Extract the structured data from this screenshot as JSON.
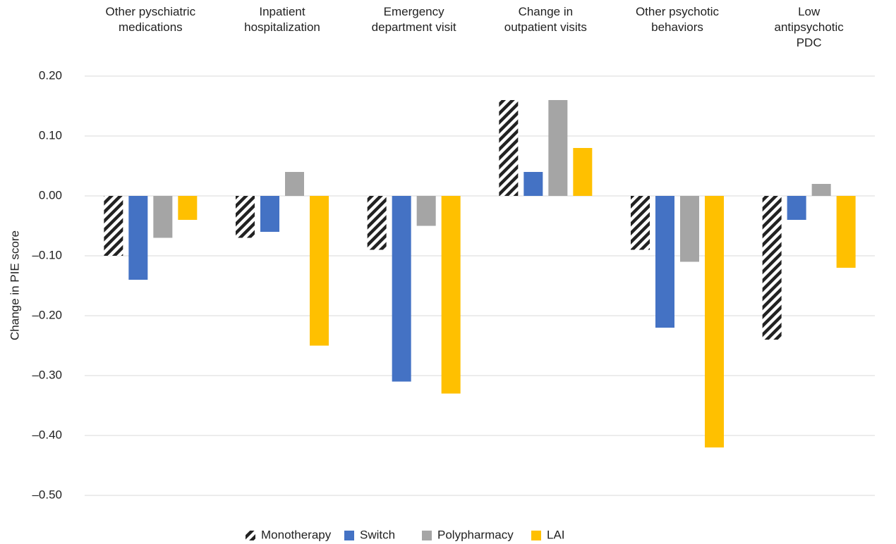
{
  "chart_data": {
    "type": "bar",
    "y_label": "Change in PIE score",
    "categories": [
      "Other pyschiatric\nmedications",
      "Inpatient\nhospitalization",
      "Emergency\ndepartment visit",
      "Change in\noutpatient visits",
      "Other psychotic\nbehaviors",
      "Low\nantipsychotic\nPDC"
    ],
    "series": [
      {
        "name": "Monotherapy",
        "color": "#222222",
        "pattern": "hatch",
        "values": [
          -0.1,
          -0.07,
          -0.09,
          0.16,
          -0.09,
          -0.24
        ]
      },
      {
        "name": "Switch",
        "color": "#4472c4",
        "values": [
          -0.14,
          -0.06,
          -0.31,
          0.04,
          -0.22,
          -0.04
        ]
      },
      {
        "name": "Polypharmacy",
        "color": "#a5a5a5",
        "values": [
          -0.07,
          0.04,
          -0.05,
          0.16,
          -0.11,
          0.02
        ]
      },
      {
        "name": "LAI",
        "color": "#ffc000",
        "values": [
          -0.04,
          -0.25,
          -0.33,
          0.08,
          -0.42,
          -0.12
        ]
      }
    ],
    "ylim": [
      -0.5,
      0.2
    ],
    "yticks": [
      {
        "value": -0.5,
        "label": "–0.50"
      },
      {
        "value": -0.4,
        "label": "–0.40"
      },
      {
        "value": -0.3,
        "label": "–0.30"
      },
      {
        "value": -0.2,
        "label": "–0.20"
      },
      {
        "value": -0.1,
        "label": "–0.10"
      },
      {
        "value": 0,
        "label": "0.00"
      },
      {
        "value": 0.1,
        "label": "0.10"
      },
      {
        "value": 0.2,
        "label": "0.20"
      }
    ],
    "grid": true,
    "legend": "bottom"
  }
}
